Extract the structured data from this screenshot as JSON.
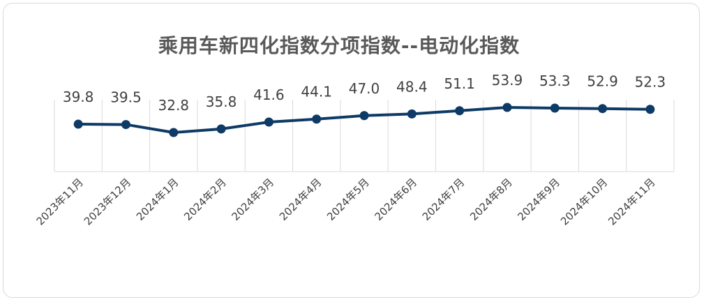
{
  "chart_data": {
    "type": "line",
    "title": "乘用车新四化指数分项指数--电动化指数",
    "categories": [
      "2023年11月",
      "2023年12月",
      "2024年1月",
      "2024年2月",
      "2024年3月",
      "2024年4月",
      "2024年5月",
      "2024年6月",
      "2024年7月",
      "2024年8月",
      "2024年9月",
      "2024年10月",
      "2024年11月"
    ],
    "values": [
      39.8,
      39.5,
      32.8,
      35.8,
      41.6,
      44.1,
      47.0,
      48.4,
      51.1,
      53.9,
      53.3,
      52.9,
      52.3
    ],
    "value_labels": [
      "39.8",
      "39.5",
      "32.8",
      "35.8",
      "41.6",
      "44.1",
      "47.0",
      "48.4",
      "51.1",
      "53.9",
      "53.3",
      "52.9",
      "52.3"
    ],
    "xlabel": "",
    "ylabel": "",
    "series_color": "#0e3a66",
    "grid": "vertical",
    "legend": "none"
  }
}
